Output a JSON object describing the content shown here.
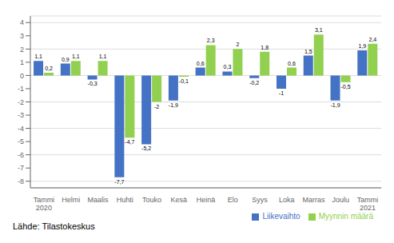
{
  "chart_data": {
    "type": "bar",
    "categories": [
      "Tammi\n2020",
      "Helmi",
      "Maalis",
      "Huhti",
      "Touko",
      "Kesä",
      "Heinä",
      "Elo",
      "Syys",
      "Loka",
      "Marras",
      "Joulu",
      "Tammi\n2021"
    ],
    "series": [
      {
        "name": "Liikevaihto",
        "color": "#4472c4",
        "values": [
          1.1,
          0.9,
          -0.3,
          -7.7,
          -5.2,
          -1.9,
          0.6,
          0.3,
          -0.2,
          -1.0,
          1.5,
          -1.9,
          1.9
        ],
        "value_labels": [
          "1,1",
          "0,9",
          "-0,3",
          "-7,7",
          "-5,2",
          "-1,9",
          "0,6",
          "0,3",
          "-0,2",
          "-1",
          "1,5",
          "-1,9",
          "1,9"
        ]
      },
      {
        "name": "Myynnin määrä",
        "color": "#92d050",
        "values": [
          0.2,
          1.1,
          1.1,
          -4.7,
          -2.0,
          -0.1,
          2.3,
          2.0,
          1.8,
          0.6,
          3.1,
          -0.5,
          2.4
        ],
        "value_labels": [
          "0,2",
          "1,1",
          "1,1",
          "-4,7",
          "-2",
          "-0,1",
          "2,3",
          "2",
          "1,8",
          "0,6",
          "3,1",
          "-0,5",
          "2,4"
        ]
      }
    ],
    "ylim": [
      -8.5,
      4.5
    ],
    "yticks": [
      -8,
      -7,
      -6,
      -5,
      -4,
      -3,
      -2,
      -1,
      0,
      1,
      2,
      3,
      4
    ],
    "grid": true,
    "data_labels": true,
    "legend": "lower right",
    "annotations": [
      "Lähde: Tilastokeskus"
    ]
  }
}
